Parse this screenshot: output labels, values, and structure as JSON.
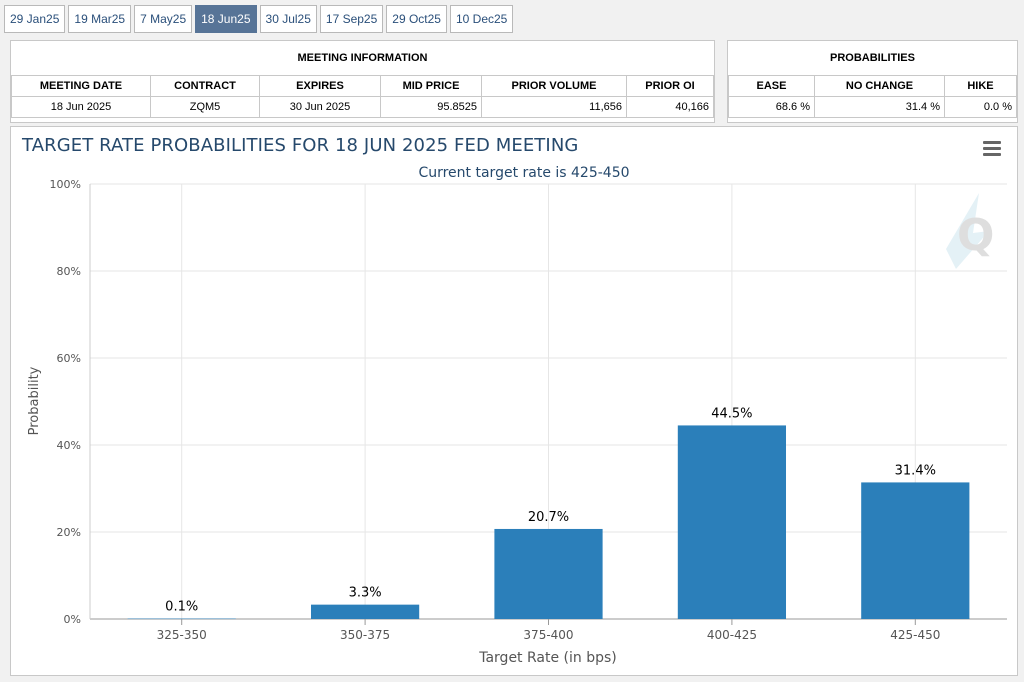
{
  "tabs": [
    {
      "label": "29 Jan25",
      "active": false
    },
    {
      "label": "19 Mar25",
      "active": false
    },
    {
      "label": "7 May25",
      "active": false
    },
    {
      "label": "18 Jun25",
      "active": true
    },
    {
      "label": "30 Jul25",
      "active": false
    },
    {
      "label": "17 Sep25",
      "active": false
    },
    {
      "label": "29 Oct25",
      "active": false
    },
    {
      "label": "10 Dec25",
      "active": false
    }
  ],
  "meeting_info": {
    "caption": "MEETING INFORMATION",
    "headers": [
      "MEETING DATE",
      "CONTRACT",
      "EXPIRES",
      "MID PRICE",
      "PRIOR VOLUME",
      "PRIOR OI"
    ],
    "row": [
      "18 Jun 2025",
      "ZQM5",
      "30 Jun 2025",
      "95.8525",
      "11,656",
      "40,166"
    ]
  },
  "probabilities": {
    "caption": "PROBABILITIES",
    "headers": [
      "EASE",
      "NO CHANGE",
      "HIKE"
    ],
    "row": [
      "68.6 %",
      "31.4 %",
      "0.0 %"
    ]
  },
  "chart_data": {
    "type": "bar",
    "title": "TARGET RATE PROBABILITIES FOR 18 JUN 2025 FED MEETING",
    "subtitle": "Current target rate is 425-450",
    "xlabel": "Target Rate (in bps)",
    "ylabel": "Probability",
    "categories": [
      "325-350",
      "350-375",
      "375-400",
      "400-425",
      "425-450"
    ],
    "values": [
      0.1,
      3.3,
      20.7,
      44.5,
      31.4
    ],
    "data_labels": [
      "0.1%",
      "3.3%",
      "20.7%",
      "44.5%",
      "31.4%"
    ],
    "ylim": [
      0,
      100
    ],
    "yticks": [
      "0%",
      "20%",
      "40%",
      "60%",
      "80%",
      "100%"
    ],
    "grid": true,
    "bar_color": "#2b7fba",
    "title_color": "#26496c"
  }
}
